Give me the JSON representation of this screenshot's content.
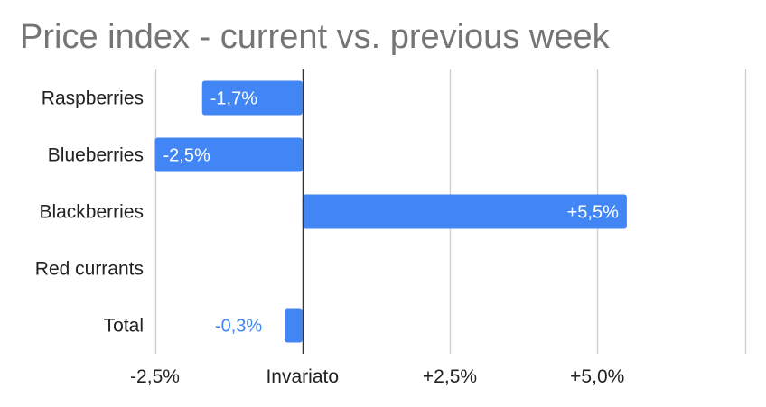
{
  "chart_data": {
    "type": "bar",
    "orientation": "horizontal",
    "title": "Price index - current vs. previous week",
    "categories": [
      "Raspberries",
      "Blueberries",
      "Blackberries",
      "Red currants",
      "Total"
    ],
    "values": [
      -1.7,
      -2.5,
      5.5,
      0,
      -0.3
    ],
    "data_labels": [
      "-1,7%",
      "-2,5%",
      "+5,5%",
      "",
      "-0,3%"
    ],
    "xlim": [
      -2.5,
      7.5
    ],
    "x_ticks": [
      {
        "value": -2.5,
        "label": "-2,5%"
      },
      {
        "value": 0,
        "label": "Invariato"
      },
      {
        "value": 2.5,
        "label": "+2,5%"
      },
      {
        "value": 5.0,
        "label": "+5,0%"
      }
    ],
    "gridlines": [
      -2.5,
      0,
      2.5,
      5.0,
      7.5
    ],
    "grid": true,
    "legend": "none",
    "colors": {
      "bar": "#4285f4",
      "grid": "#cccccc",
      "zero_axis": "#333333",
      "inside_label": "#ffffff",
      "outside_label": "#4285f4",
      "title": "#757575"
    }
  }
}
